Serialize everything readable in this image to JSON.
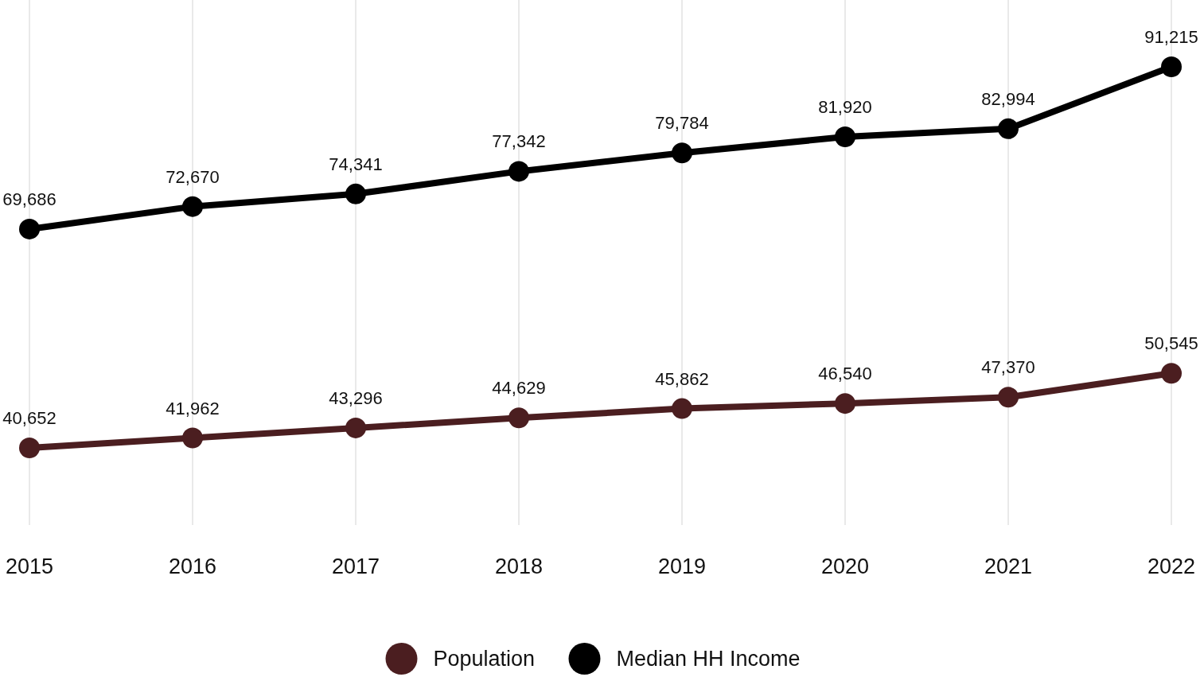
{
  "chart_data": {
    "type": "line",
    "categories": [
      "2015",
      "2016",
      "2017",
      "2018",
      "2019",
      "2020",
      "2021",
      "2022"
    ],
    "series": [
      {
        "name": "Population",
        "color": "#4b1e20",
        "values": [
          40652,
          41962,
          43296,
          44629,
          45862,
          46540,
          47370,
          50545
        ],
        "value_labels": [
          "40,652",
          "41,962",
          "43,296",
          "44,629",
          "45,862",
          "46,540",
          "47,370",
          "50,545"
        ]
      },
      {
        "name": "Median HH Income",
        "color": "#000000",
        "values": [
          69686,
          72670,
          74341,
          77342,
          79784,
          81920,
          82994,
          91215
        ],
        "value_labels": [
          "69,686",
          "72,670",
          "74,341",
          "77,342",
          "79,784",
          "81,920",
          "82,994",
          "91,215"
        ]
      }
    ],
    "grid": "x",
    "legend": "bottom",
    "marker": "circle",
    "line_style": "solid",
    "tick_labels": "x"
  }
}
